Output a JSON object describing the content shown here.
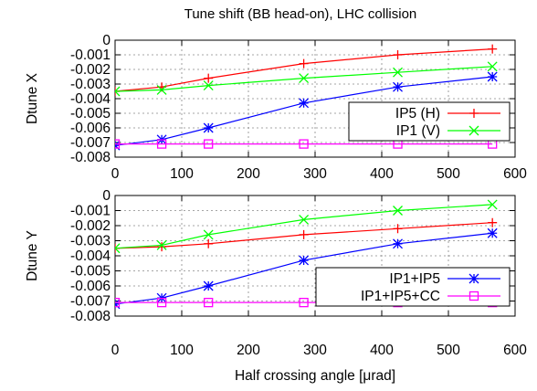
{
  "title": "Tune shift (BB head-on), LHC collision",
  "xlabel": "Half crossing angle [μrad]",
  "chart_data": [
    {
      "type": "line",
      "panel": "top",
      "ylabel": "Dtune X",
      "xlim": [
        0,
        600
      ],
      "ylim": [
        -0.008,
        0
      ],
      "x_ticks": [
        0,
        100,
        200,
        300,
        400,
        500,
        600
      ],
      "y_ticks": [
        "0",
        "-0.001",
        "-0.002",
        "-0.003",
        "-0.004",
        "-0.005",
        "-0.006",
        "-0.007",
        "-0.008"
      ],
      "grid": true,
      "legend_position": "bottom-right",
      "legend_series": [
        0,
        1
      ],
      "x": [
        0,
        70,
        140,
        283,
        424,
        566
      ],
      "series": [
        {
          "name": "IP5 (H)",
          "color": "#ff0000",
          "marker": "plus",
          "values": [
            -0.0035,
            -0.0032,
            -0.0026,
            -0.0016,
            -0.001,
            -0.0006
          ]
        },
        {
          "name": "IP1 (V)",
          "color": "#00ff00",
          "marker": "cross",
          "values": [
            -0.0035,
            -0.0034,
            -0.0031,
            -0.0026,
            -0.0022,
            -0.0018
          ]
        },
        {
          "name": "IP1+IP5",
          "color": "#0000ff",
          "marker": "star",
          "values": [
            -0.0072,
            -0.0068,
            -0.006,
            -0.0043,
            -0.0032,
            -0.0025
          ]
        },
        {
          "name": "IP1+IP5+CC",
          "color": "#ff00ff",
          "marker": "square",
          "values": [
            -0.0071,
            -0.0071,
            -0.0071,
            -0.0071,
            -0.0071,
            -0.0071
          ]
        }
      ]
    },
    {
      "type": "line",
      "panel": "bottom",
      "ylabel": "Dtune Y",
      "xlim": [
        0,
        600
      ],
      "ylim": [
        -0.008,
        0
      ],
      "x_ticks": [
        0,
        100,
        200,
        300,
        400,
        500,
        600
      ],
      "y_ticks": [
        "0",
        "-0.001",
        "-0.002",
        "-0.003",
        "-0.004",
        "-0.005",
        "-0.006",
        "-0.007",
        "-0.008"
      ],
      "grid": true,
      "legend_position": "bottom-right",
      "legend_series": [
        2,
        3
      ],
      "x": [
        0,
        70,
        140,
        283,
        424,
        566
      ],
      "series": [
        {
          "name": "IP5 (H)",
          "color": "#ff0000",
          "marker": "plus",
          "values": [
            -0.0035,
            -0.0034,
            -0.0032,
            -0.0026,
            -0.0022,
            -0.0018
          ]
        },
        {
          "name": "IP1 (V)",
          "color": "#00ff00",
          "marker": "cross",
          "values": [
            -0.0035,
            -0.0033,
            -0.0026,
            -0.0016,
            -0.001,
            -0.0006
          ]
        },
        {
          "name": "IP1+IP5",
          "color": "#0000ff",
          "marker": "star",
          "values": [
            -0.0072,
            -0.0068,
            -0.006,
            -0.0043,
            -0.0032,
            -0.0025
          ]
        },
        {
          "name": "IP1+IP5+CC",
          "color": "#ff00ff",
          "marker": "square",
          "values": [
            -0.0071,
            -0.0071,
            -0.0071,
            -0.0071,
            -0.0071,
            -0.0071
          ]
        }
      ]
    }
  ]
}
